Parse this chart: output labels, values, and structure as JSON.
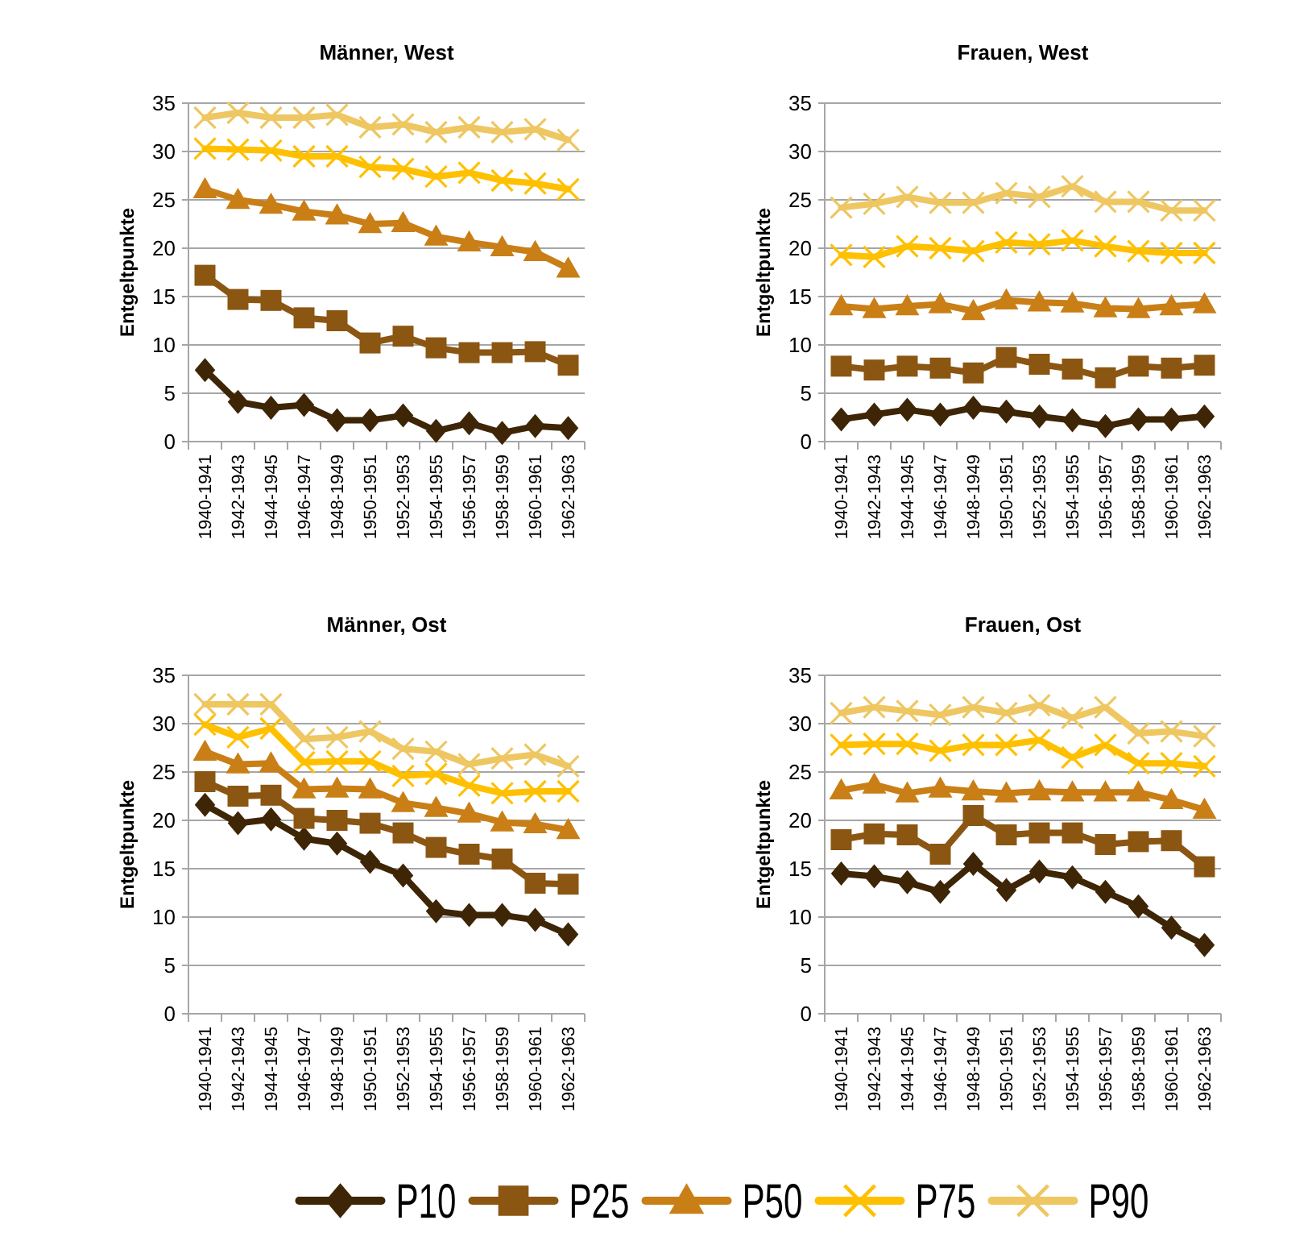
{
  "chart_data": [
    {
      "type": "line",
      "title": "Männer, West",
      "ylabel": "Entgeltpunkte",
      "categories": [
        "1940-1941",
        "1942-1943",
        "1944-1945",
        "1946-1947",
        "1948-1949",
        "1950-1951",
        "1952-1953",
        "1954-1955",
        "1956-1957",
        "1958-1959",
        "1960-1961",
        "1962-1963"
      ],
      "ylim": [
        0,
        35
      ],
      "yticks": [
        0,
        5,
        10,
        15,
        20,
        25,
        30,
        35
      ],
      "grid": "y",
      "legend": "bottom",
      "series": [
        {
          "name": "P10",
          "color": "#3d2506",
          "marker": "diamond",
          "values": [
            7.4,
            4.1,
            3.5,
            3.8,
            2.2,
            2.2,
            2.7,
            1.1,
            1.9,
            0.9,
            1.6,
            1.4
          ]
        },
        {
          "name": "P25",
          "color": "#8b5612",
          "marker": "square",
          "values": [
            17.2,
            14.7,
            14.6,
            12.8,
            12.5,
            10.2,
            10.9,
            9.7,
            9.2,
            9.2,
            9.3,
            7.9
          ]
        },
        {
          "name": "P50",
          "color": "#c97f16",
          "marker": "triangle",
          "values": [
            26.1,
            25,
            24.5,
            23.8,
            23.4,
            22.5,
            22.6,
            21.2,
            20.6,
            20.1,
            19.6,
            17.9
          ]
        },
        {
          "name": "P75",
          "color": "#ffc000",
          "marker": "cross",
          "values": [
            30.3,
            30.2,
            30.1,
            29.5,
            29.5,
            28.4,
            28.2,
            27.4,
            27.8,
            27,
            26.7,
            26.1
          ]
        },
        {
          "name": "P90",
          "color": "#eec763",
          "marker": "cross",
          "values": [
            33.5,
            34,
            33.5,
            33.5,
            33.8,
            32.5,
            32.8,
            32,
            32.5,
            32,
            32.3,
            31.2
          ]
        }
      ]
    },
    {
      "type": "line",
      "title": "Frauen, West",
      "ylabel": "Entgeltpunkte",
      "categories": [
        "1940-1941",
        "1942-1943",
        "1944-1945",
        "1946-1947",
        "1948-1949",
        "1950-1951",
        "1952-1953",
        "1954-1955",
        "1956-1957",
        "1958-1959",
        "1960-1961",
        "1962-1963"
      ],
      "ylim": [
        0,
        35
      ],
      "yticks": [
        0,
        5,
        10,
        15,
        20,
        25,
        30,
        35
      ],
      "grid": "y",
      "series": [
        {
          "name": "P10",
          "color": "#3d2506",
          "marker": "diamond",
          "values": [
            2.3,
            2.8,
            3.3,
            2.8,
            3.5,
            3.1,
            2.6,
            2.2,
            1.6,
            2.3,
            2.3,
            2.6
          ]
        },
        {
          "name": "P25",
          "color": "#8b5612",
          "marker": "square",
          "values": [
            7.8,
            7.4,
            7.8,
            7.6,
            7.1,
            8.7,
            8,
            7.5,
            6.6,
            7.8,
            7.6,
            7.9
          ]
        },
        {
          "name": "P50",
          "color": "#c97f16",
          "marker": "triangle",
          "values": [
            14,
            13.7,
            14,
            14.2,
            13.5,
            14.6,
            14.4,
            14.3,
            13.8,
            13.7,
            14,
            14.2
          ]
        },
        {
          "name": "P75",
          "color": "#ffc000",
          "marker": "cross",
          "values": [
            19.3,
            19.1,
            20.2,
            20,
            19.7,
            20.6,
            20.4,
            20.8,
            20.2,
            19.7,
            19.5,
            19.5
          ]
        },
        {
          "name": "P90",
          "color": "#eec763",
          "marker": "cross",
          "values": [
            24.2,
            24.6,
            25.3,
            24.7,
            24.7,
            25.7,
            25.3,
            26.4,
            24.8,
            24.8,
            23.9,
            23.9
          ]
        }
      ]
    },
    {
      "type": "line",
      "title": "Männer, Ost",
      "ylabel": "Entgeltpunkte",
      "categories": [
        "1940-1941",
        "1942-1943",
        "1944-1945",
        "1946-1947",
        "1948-1949",
        "1950-1951",
        "1952-1953",
        "1954-1955",
        "1956-1957",
        "1958-1959",
        "1960-1961",
        "1962-1963"
      ],
      "ylim": [
        0,
        35
      ],
      "yticks": [
        0,
        5,
        10,
        15,
        20,
        25,
        30,
        35
      ],
      "grid": "y",
      "series": [
        {
          "name": "P10",
          "color": "#3d2506",
          "marker": "diamond",
          "values": [
            21.6,
            19.7,
            20.1,
            18.1,
            17.6,
            15.7,
            14.3,
            10.6,
            10.2,
            10.2,
            9.7,
            8.2
          ]
        },
        {
          "name": "P25",
          "color": "#8b5612",
          "marker": "square",
          "values": [
            24,
            22.5,
            22.6,
            20.2,
            20,
            19.7,
            18.7,
            17.2,
            16.5,
            16,
            13.5,
            13.4
          ]
        },
        {
          "name": "P50",
          "color": "#c97f16",
          "marker": "triangle",
          "values": [
            27.1,
            25.8,
            25.9,
            23.2,
            23.3,
            23.2,
            21.8,
            21.3,
            20.7,
            19.8,
            19.6,
            19
          ]
        },
        {
          "name": "P75",
          "color": "#ffc000",
          "marker": "cross",
          "values": [
            29.9,
            28.6,
            29.5,
            26,
            26.1,
            26.1,
            24.6,
            24.8,
            23.6,
            22.8,
            23,
            23
          ]
        },
        {
          "name": "P90",
          "color": "#eec763",
          "marker": "cross",
          "values": [
            32,
            32,
            32,
            28.4,
            28.6,
            29.2,
            27.4,
            27.1,
            25.8,
            26.4,
            26.8,
            25.6
          ]
        }
      ]
    },
    {
      "type": "line",
      "title": "Frauen, Ost",
      "ylabel": "Entgeltpunkte",
      "categories": [
        "1940-1941",
        "1942-1943",
        "1944-1945",
        "1946-1947",
        "1948-1949",
        "1950-1951",
        "1952-1953",
        "1954-1955",
        "1956-1957",
        "1958-1959",
        "1960-1961",
        "1962-1963"
      ],
      "ylim": [
        0,
        35
      ],
      "yticks": [
        0,
        5,
        10,
        15,
        20,
        25,
        30,
        35
      ],
      "grid": "y",
      "series": [
        {
          "name": "P10",
          "color": "#3d2506",
          "marker": "diamond",
          "values": [
            14.5,
            14.2,
            13.6,
            12.6,
            15.5,
            12.8,
            14.7,
            14.1,
            12.6,
            11.1,
            8.9,
            7.1
          ]
        },
        {
          "name": "P25",
          "color": "#8b5612",
          "marker": "square",
          "values": [
            18,
            18.6,
            18.5,
            16.5,
            20.5,
            18.5,
            18.7,
            18.7,
            17.5,
            17.8,
            17.9,
            15.2
          ]
        },
        {
          "name": "P50",
          "color": "#c97f16",
          "marker": "triangle",
          "values": [
            23.1,
            23.7,
            22.8,
            23.3,
            23,
            22.8,
            23,
            22.9,
            22.9,
            22.9,
            22.1,
            21.1
          ]
        },
        {
          "name": "P75",
          "color": "#ffc000",
          "marker": "cross",
          "values": [
            27.8,
            27.9,
            27.9,
            27.2,
            27.8,
            27.8,
            28.3,
            26.5,
            27.8,
            25.9,
            25.9,
            25.6
          ]
        },
        {
          "name": "P90",
          "color": "#eec763",
          "marker": "cross",
          "values": [
            31.1,
            31.7,
            31.3,
            30.9,
            31.7,
            31.1,
            31.9,
            30.6,
            31.7,
            29,
            29.2,
            28.7
          ]
        }
      ]
    }
  ]
}
